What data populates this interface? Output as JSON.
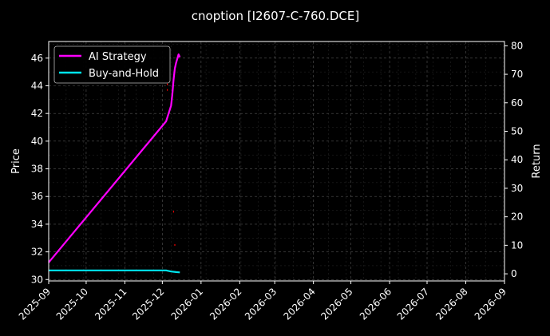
{
  "chart_data": {
    "type": "line",
    "title": "cnoption [I2607-C-760.DCE]",
    "xlabel": "",
    "ylabel": "Price",
    "y2label": "Return",
    "x_ticks": [
      "2025-09",
      "2025-10",
      "2025-11",
      "2025-12",
      "2026-01",
      "2026-02",
      "2026-03",
      "2026-04",
      "2026-05",
      "2026-06",
      "2026-07",
      "2026-08",
      "2026-09"
    ],
    "xlim": [
      "2025-09-01",
      "2026-09-01"
    ],
    "ylim": [
      29.9,
      47.2
    ],
    "y_ticks": [
      30,
      32,
      34,
      36,
      38,
      40,
      42,
      44,
      46
    ],
    "y2lim": [
      -2.5,
      81.5
    ],
    "y2_ticks": [
      0,
      10,
      20,
      30,
      40,
      50,
      60,
      70,
      80
    ],
    "grid": true,
    "legend_position": "upper-left",
    "background": "#000000",
    "price_color": "#ff0000",
    "series": [
      {
        "name": "AI Strategy",
        "axis": "right",
        "color": "#ff00ff",
        "x": [
          "2025-09-01",
          "2025-12-04",
          "2025-12-08",
          "2025-12-09",
          "2025-12-10",
          "2025-12-11",
          "2025-12-12",
          "2025-12-14",
          "2025-12-15"
        ],
        "y": [
          4,
          53.5,
          59,
          63,
          68,
          72,
          74,
          77,
          76
        ]
      },
      {
        "name": "Buy-and-Hold",
        "axis": "right",
        "color": "#00e5ee",
        "x": [
          "2025-09-01",
          "2025-12-04",
          "2025-12-08",
          "2025-12-12",
          "2025-12-15"
        ],
        "y": [
          1.2,
          1.2,
          0.8,
          0.6,
          0.5
        ]
      }
    ],
    "price_points": [
      {
        "x": "2025-12-05",
        "y": 43.7
      },
      {
        "x": "2025-12-05",
        "y": 44.1
      },
      {
        "x": "2025-12-10",
        "y": 34.9
      },
      {
        "x": "2025-12-11",
        "y": 32.5
      }
    ]
  }
}
